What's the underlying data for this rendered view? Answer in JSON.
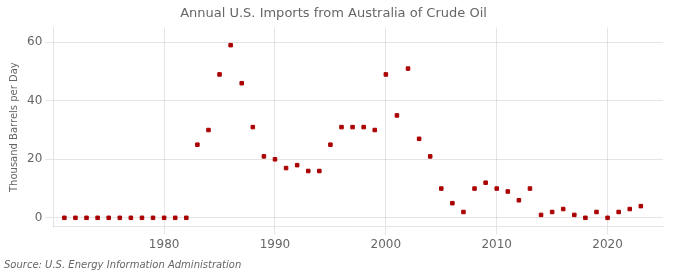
{
  "chart_data": {
    "type": "scatter",
    "title": "Annual U.S. Imports from Australia of Crude Oil",
    "ylabel": "Thousand Barrels per Day",
    "source": "Source: U.S. Energy Information Administration",
    "x": [
      1971,
      1972,
      1973,
      1974,
      1975,
      1976,
      1977,
      1978,
      1979,
      1980,
      1981,
      1982,
      1983,
      1984,
      1985,
      1986,
      1987,
      1988,
      1989,
      1990,
      1991,
      1992,
      1993,
      1994,
      1995,
      1996,
      1997,
      1998,
      1999,
      2000,
      2001,
      2002,
      2003,
      2004,
      2005,
      2006,
      2007,
      2008,
      2009,
      2010,
      2011,
      2012,
      2013,
      2014,
      2015,
      2016,
      2017,
      2018,
      2019,
      2020,
      2021,
      2022,
      2023
    ],
    "values": [
      0,
      0,
      0,
      0,
      0,
      0,
      0,
      0,
      0,
      0,
      0,
      0,
      25,
      30,
      49,
      59,
      46,
      31,
      21,
      20,
      17,
      18,
      16,
      16,
      25,
      31,
      31,
      31,
      30,
      49,
      35,
      51,
      27,
      21,
      10,
      5,
      2,
      10,
      12,
      10,
      9,
      6,
      10,
      1,
      2,
      3,
      1,
      0,
      2,
      0,
      2,
      3,
      4
    ],
    "color": "#aa0000",
    "marker": "square",
    "xlim": [
      1970,
      2025
    ],
    "xticks": [
      1980,
      1990,
      2000,
      2010,
      2020
    ],
    "ylim": [
      -3,
      65
    ],
    "yticks": [
      0,
      20,
      40,
      60
    ],
    "grid": true
  }
}
